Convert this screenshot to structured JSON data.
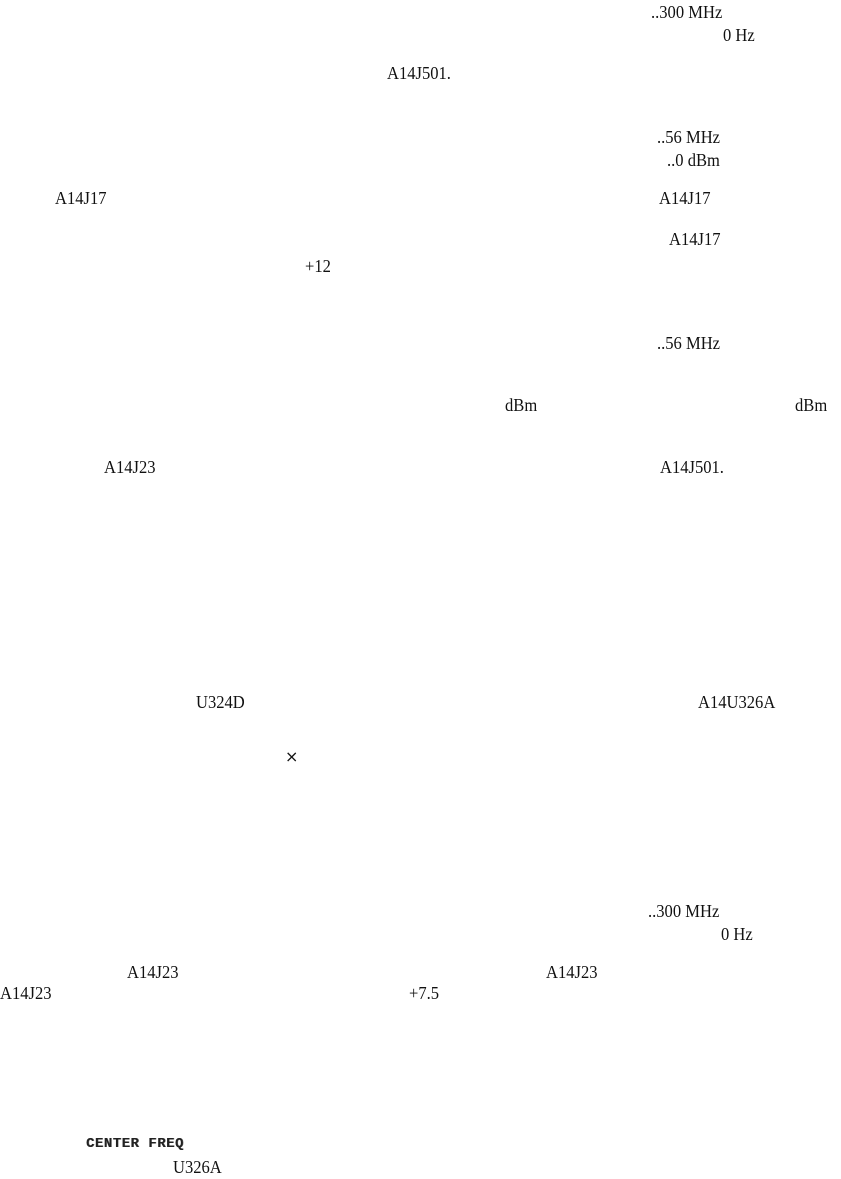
{
  "fragments": {
    "f1": "..300 MHz",
    "f2": "0 Hz",
    "f3": "A14J501.",
    "f4": "..56 MHz",
    "f5": "..0 dBm",
    "f6": "A14J17",
    "f7": "A14J17",
    "f8": "A14J17",
    "f9": "+12",
    "f10": "..56 MHz",
    "f11": "dBm",
    "f12": "dBm",
    "f13": "A14J23",
    "f14": "A14J501.",
    "f15": "U324D",
    "f16": "A14U326A",
    "f17": "×",
    "f18": "..300 MHz",
    "f19": "0 Hz",
    "f20": "A14J23",
    "f21": "A14J23",
    "f22": "A14J23",
    "f23": "+7.5",
    "f24": "CENTER FREQ",
    "f25": "U326A"
  }
}
